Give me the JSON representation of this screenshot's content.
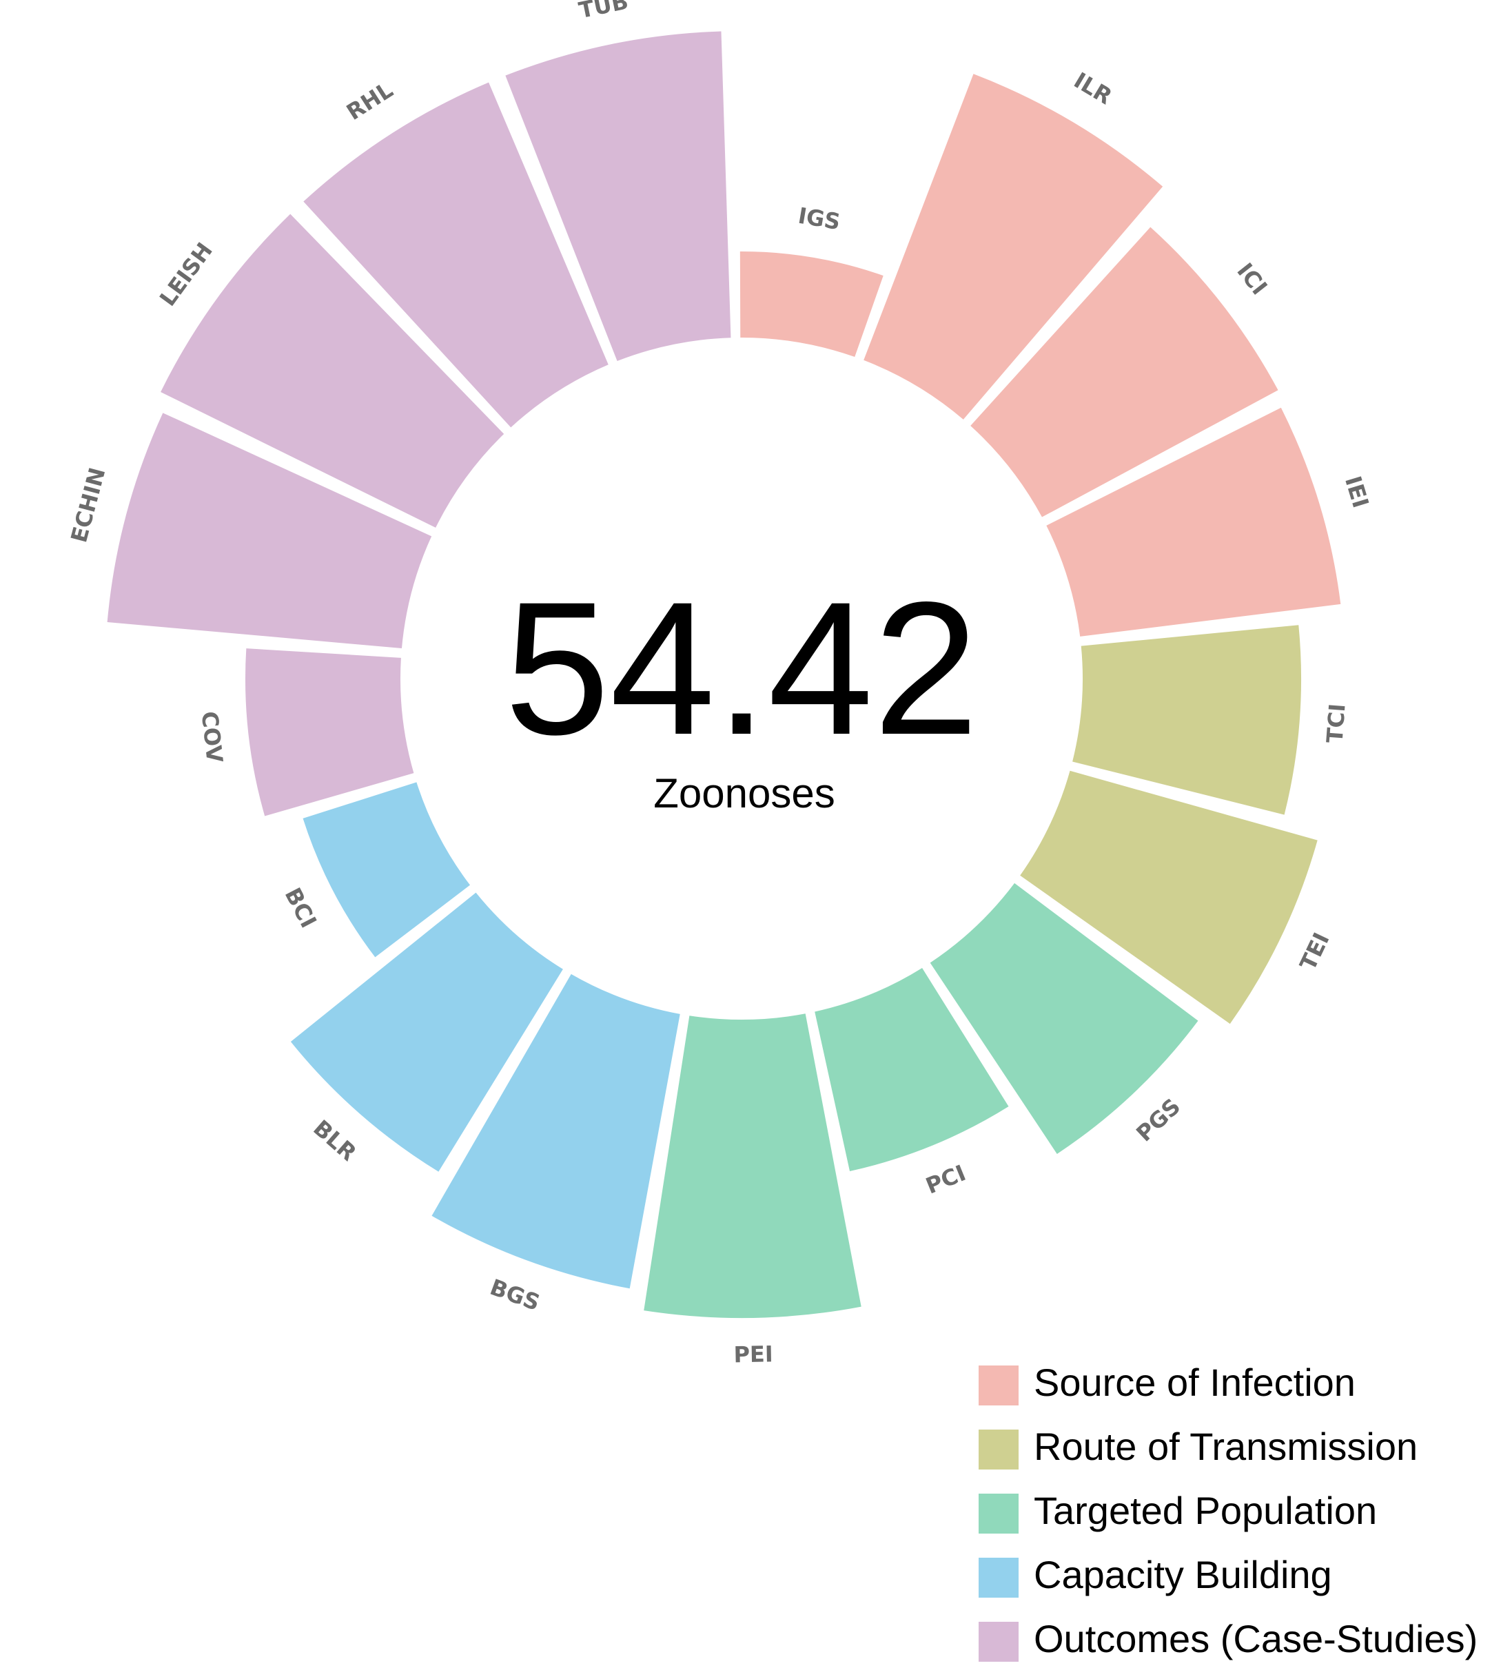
{
  "chart_data": {
    "type": "circular-bar",
    "center_value": "54.42",
    "center_label": "Zoonoses",
    "groups": [
      {
        "name": "Source of Infection",
        "color": "#f4b9b2"
      },
      {
        "name": "Route of Transmission",
        "color": "#cfd091"
      },
      {
        "name": "Targeted Population",
        "color": "#90d9bb"
      },
      {
        "name": "Capacity Building",
        "color": "#93d1ed"
      },
      {
        "name": "Outcomes (Case-Studies)",
        "color": "#d8b9d6"
      }
    ],
    "bars": [
      {
        "label": "IGS",
        "group": 0,
        "value": 20
      },
      {
        "label": "ILR",
        "group": 0,
        "value": 100
      },
      {
        "label": "ICI",
        "group": 0,
        "value": 86
      },
      {
        "label": "IEI",
        "group": 0,
        "value": 84
      },
      {
        "label": "TCI",
        "group": 1,
        "value": 68
      },
      {
        "label": "TEI",
        "group": 1,
        "value": 82
      },
      {
        "label": "PGS",
        "group": 2,
        "value": 72
      },
      {
        "label": "PCI",
        "group": 2,
        "value": 48
      },
      {
        "label": "PEI",
        "group": 2,
        "value": 97
      },
      {
        "label": "BGS",
        "group": 3,
        "value": 90
      },
      {
        "label": "BLR",
        "group": 3,
        "value": 75
      },
      {
        "label": "BCI",
        "group": 3,
        "value": 32
      },
      {
        "label": "COV",
        "group": 4,
        "value": 45
      },
      {
        "label": "ECHIN",
        "group": 4,
        "value": 96
      },
      {
        "label": "LEISH",
        "group": 4,
        "value": 100
      },
      {
        "label": "RHL",
        "group": 4,
        "value": 100
      },
      {
        "label": "TUB",
        "group": 4,
        "value": 100
      }
    ],
    "value_range": [
      0,
      100
    ]
  }
}
